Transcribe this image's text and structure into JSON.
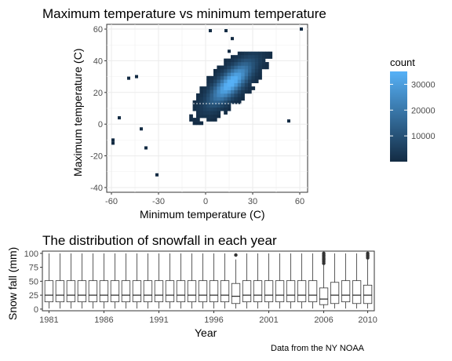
{
  "caption": "Data from the NY NOAA",
  "chart_data": [
    {
      "type": "heatmap",
      "title": "Maximum temperature vs minimum temperature",
      "xlabel": "Minimum temperature (C)",
      "ylabel": "Maximum temperature (C)",
      "xlim": [
        -63,
        65
      ],
      "ylim": [
        -43,
        63
      ],
      "xticks": [
        -60,
        -30,
        0,
        30,
        60
      ],
      "xtick_labels": [
        "-60",
        "-30",
        "0",
        "30",
        "60"
      ],
      "yticks": [
        -40,
        -20,
        0,
        20,
        40,
        60
      ],
      "ytick_labels": [
        "-40",
        "-20",
        "0",
        "20",
        "40",
        "60"
      ],
      "grid": true,
      "legend": {
        "title": "count",
        "placement": "right",
        "ticks": [
          10000,
          20000,
          30000
        ],
        "tick_labels": [
          "10000",
          "20000",
          "30000"
        ],
        "range": [
          0,
          35000
        ],
        "low_color": "#132B43",
        "high_color": "#56B1F7"
      },
      "density_peak": {
        "x": 15,
        "y": 25
      },
      "outlier_cells": [
        {
          "x": -60,
          "y": -11
        },
        {
          "x": -60,
          "y": -13
        },
        {
          "x": -56,
          "y": 3
        },
        {
          "x": -45,
          "y": 29
        },
        {
          "x": -50,
          "y": 28
        },
        {
          "x": 2,
          "y": 58
        },
        {
          "x": 12,
          "y": 58
        },
        {
          "x": 16,
          "y": 53
        },
        {
          "x": 60,
          "y": 59
        },
        {
          "x": 52,
          "y": 1
        },
        {
          "x": -42,
          "y": -4
        },
        {
          "x": 14,
          "y": 45
        },
        {
          "x": -32,
          "y": -33
        },
        {
          "x": -39,
          "y": -16
        }
      ]
    },
    {
      "type": "box",
      "title": "The distribution of snowfall in each year",
      "xlabel": "Year",
      "ylabel": "Snow fall (mm)",
      "ylim": [
        0,
        100
      ],
      "yticks": [
        0,
        25,
        50,
        75,
        100
      ],
      "ytick_labels": [
        "0",
        "25",
        "50",
        "75",
        "100"
      ],
      "xticks": [
        1981,
        1986,
        1991,
        1996,
        2001,
        2006,
        2010
      ],
      "xtick_labels": [
        "1981",
        "1986",
        "1991",
        "1996",
        "2001",
        "2006",
        "2010"
      ],
      "grid": false,
      "series": [
        {
          "x": 1981,
          "min": 1,
          "q1": 13,
          "median": 25,
          "q3": 51,
          "max": 100
        },
        {
          "x": 1982,
          "min": 1,
          "q1": 13,
          "median": 25,
          "q3": 51,
          "max": 100
        },
        {
          "x": 1983,
          "min": 1,
          "q1": 13,
          "median": 25,
          "q3": 51,
          "max": 100
        },
        {
          "x": 1984,
          "min": 1,
          "q1": 13,
          "median": 25,
          "q3": 51,
          "max": 100
        },
        {
          "x": 1985,
          "min": 1,
          "q1": 13,
          "median": 25,
          "q3": 51,
          "max": 100
        },
        {
          "x": 1986,
          "min": 1,
          "q1": 13,
          "median": 25,
          "q3": 51,
          "max": 100
        },
        {
          "x": 1987,
          "min": 1,
          "q1": 13,
          "median": 25,
          "q3": 51,
          "max": 100
        },
        {
          "x": 1988,
          "min": 1,
          "q1": 13,
          "median": 25,
          "q3": 51,
          "max": 100
        },
        {
          "x": 1989,
          "min": 1,
          "q1": 13,
          "median": 25,
          "q3": 51,
          "max": 100
        },
        {
          "x": 1990,
          "min": 1,
          "q1": 13,
          "median": 25,
          "q3": 51,
          "max": 100
        },
        {
          "x": 1991,
          "min": 1,
          "q1": 13,
          "median": 25,
          "q3": 51,
          "max": 100
        },
        {
          "x": 1992,
          "min": 1,
          "q1": 13,
          "median": 25,
          "q3": 51,
          "max": 100
        },
        {
          "x": 1993,
          "min": 1,
          "q1": 13,
          "median": 25,
          "q3": 51,
          "max": 100
        },
        {
          "x": 1994,
          "min": 1,
          "q1": 13,
          "median": 25,
          "q3": 51,
          "max": 100
        },
        {
          "x": 1995,
          "min": 1,
          "q1": 13,
          "median": 25,
          "q3": 51,
          "max": 100
        },
        {
          "x": 1996,
          "min": 1,
          "q1": 13,
          "median": 25,
          "q3": 51,
          "max": 100
        },
        {
          "x": 1997,
          "min": 1,
          "q1": 13,
          "median": 25,
          "q3": 51,
          "max": 100
        },
        {
          "x": 1998,
          "min": 1,
          "q1": 10,
          "median": 23,
          "q3": 46,
          "max": 89,
          "outliers": [
            97
          ]
        },
        {
          "x": 1999,
          "min": 1,
          "q1": 13,
          "median": 25,
          "q3": 51,
          "max": 100
        },
        {
          "x": 2000,
          "min": 1,
          "q1": 13,
          "median": 25,
          "q3": 51,
          "max": 100
        },
        {
          "x": 2001,
          "min": 1,
          "q1": 13,
          "median": 25,
          "q3": 51,
          "max": 100
        },
        {
          "x": 2002,
          "min": 1,
          "q1": 13,
          "median": 25,
          "q3": 51,
          "max": 100
        },
        {
          "x": 2003,
          "min": 1,
          "q1": 13,
          "median": 25,
          "q3": 51,
          "max": 100
        },
        {
          "x": 2004,
          "min": 1,
          "q1": 13,
          "median": 25,
          "q3": 51,
          "max": 100
        },
        {
          "x": 2005,
          "min": 1,
          "q1": 13,
          "median": 25,
          "q3": 51,
          "max": 100
        },
        {
          "x": 2006,
          "min": 1,
          "q1": 8,
          "median": 18,
          "q3": 38,
          "max": 79,
          "outliers": [
            82,
            85,
            88,
            90,
            92,
            95,
            97,
            100
          ]
        },
        {
          "x": 2007,
          "min": 1,
          "q1": 10,
          "median": 25,
          "q3": 48,
          "max": 100
        },
        {
          "x": 2008,
          "min": 1,
          "q1": 13,
          "median": 25,
          "q3": 51,
          "max": 100
        },
        {
          "x": 2009,
          "min": 1,
          "q1": 10,
          "median": 25,
          "q3": 51,
          "max": 100
        },
        {
          "x": 2010,
          "min": 1,
          "q1": 10,
          "median": 25,
          "q3": 43,
          "max": 89,
          "outliers": [
            92,
            95,
            97,
            100
          ]
        }
      ]
    }
  ]
}
